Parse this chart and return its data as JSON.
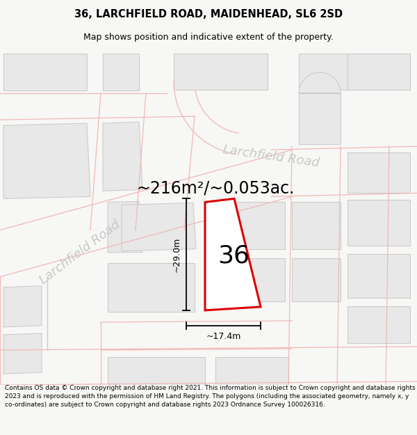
{
  "title": "36, LARCHFIELD ROAD, MAIDENHEAD, SL6 2SD",
  "subtitle": "Map shows position and indicative extent of the property.",
  "area_text": "~216m²/~0.053ac.",
  "number_label": "36",
  "dim_height": "~29.0m",
  "dim_width": "~17.4m",
  "road_label_1": "Larchfield Road",
  "road_label_2": "Larchfield Road",
  "footer": "Contains OS data © Crown copyright and database right 2021. This information is subject to Crown copyright and database rights 2023 and is reproduced with the permission of HM Land Registry. The polygons (including the associated geometry, namely x, y co-ordinates) are subject to Crown copyright and database rights 2023 Ordnance Survey 100026316.",
  "bg_color": "#f7f7f5",
  "map_bg": "#ffffff",
  "building_fill": "#e8e8e8",
  "building_edge": "#cccccc",
  "road_line_color": "#f0b8b8",
  "plot_line_color": "#dd0000",
  "dim_line_color": "#000000",
  "text_color": "#000000",
  "road_text_color": "#c8c8c8",
  "title_fontsize": 10.5,
  "subtitle_fontsize": 9,
  "area_fontsize": 17,
  "number_fontsize": 26,
  "dim_fontsize": 9,
  "road_fontsize": 13,
  "footer_fontsize": 6.5
}
